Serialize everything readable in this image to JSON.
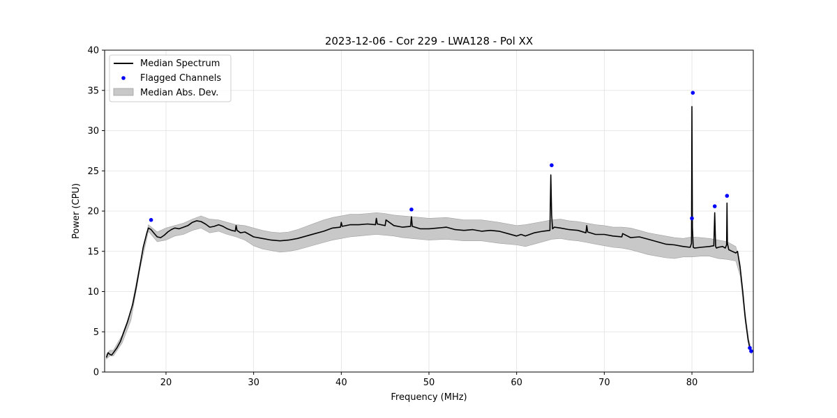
{
  "chart_data": {
    "type": "line",
    "title": "2023-12-06 - Cor 229 - LWA128 - Pol XX",
    "xlabel": "Frequency (MHz)",
    "ylabel": "Power (CPU)",
    "xlim": [
      13,
      87
    ],
    "ylim": [
      0,
      40
    ],
    "xticks": [
      20,
      30,
      40,
      50,
      60,
      70,
      80
    ],
    "yticks": [
      0,
      5,
      10,
      15,
      20,
      25,
      30,
      35,
      40
    ],
    "grid": true,
    "legend_position": "top-left",
    "legend": [
      "Median Spectrum",
      "Flagged Channels",
      "Median Abs. Dev."
    ],
    "colors": {
      "median": "#000000",
      "flagged": "#0000ff",
      "mad": "#c8c8c8",
      "mad_edge": "#a0a0a0",
      "grid": "#e0e0e0"
    },
    "series": [
      {
        "name": "Median Spectrum",
        "x": [
          13.2,
          13.4,
          13.6,
          13.8,
          14.0,
          14.4,
          14.8,
          15.2,
          15.6,
          15.9,
          16.2,
          16.6,
          17.0,
          17.4,
          17.8,
          18.0,
          18.3,
          18.6,
          19.0,
          19.4,
          19.8,
          20.2,
          20.6,
          21.0,
          21.5,
          22.0,
          22.5,
          23.0,
          23.5,
          24.0,
          24.5,
          25.0,
          25.5,
          26.0,
          26.5,
          27.0,
          27.5,
          27.9,
          28.0,
          28.1,
          28.5,
          29.0,
          29.5,
          30.0,
          31.0,
          32.0,
          33.0,
          34.0,
          35.0,
          36.0,
          37.0,
          38.0,
          39.0,
          39.9,
          40.0,
          40.1,
          41.0,
          42.0,
          43.0,
          43.9,
          44.0,
          44.1,
          45.0,
          45.1,
          46.0,
          47.0,
          47.9,
          48.0,
          48.1,
          49.0,
          50.0,
          51.0,
          52.0,
          53.0,
          54.0,
          55.0,
          56.0,
          57.0,
          58.0,
          59.0,
          60.0,
          60.5,
          61.0,
          62.0,
          63.0,
          63.8,
          63.9,
          64.0,
          64.1,
          64.3,
          65.0,
          66.0,
          67.0,
          67.9,
          68.0,
          68.1,
          69.0,
          70.0,
          71.0,
          72.0,
          72.1,
          73.0,
          74.0,
          75.0,
          76.0,
          77.0,
          78.0,
          79.0,
          79.8,
          79.95,
          80.0,
          80.05,
          80.15,
          80.3,
          81.0,
          82.0,
          82.5,
          82.6,
          82.7,
          82.8,
          83.0,
          83.5,
          83.8,
          83.95,
          84.0,
          84.05,
          84.2,
          84.6,
          85.0,
          85.2,
          85.5,
          85.8,
          86.1,
          86.4,
          86.6,
          86.8
        ],
        "y": [
          1.8,
          2.4,
          2.2,
          2.1,
          2.4,
          3.0,
          3.8,
          5.0,
          6.2,
          7.3,
          8.4,
          10.5,
          13.0,
          15.5,
          17.2,
          17.9,
          17.7,
          17.3,
          16.8,
          16.7,
          17.0,
          17.4,
          17.7,
          17.9,
          17.8,
          18.0,
          18.2,
          18.6,
          18.8,
          18.7,
          18.4,
          18.0,
          18.1,
          18.3,
          18.1,
          17.8,
          17.6,
          17.5,
          18.2,
          17.6,
          17.3,
          17.4,
          17.1,
          16.8,
          16.6,
          16.4,
          16.3,
          16.4,
          16.6,
          16.9,
          17.2,
          17.5,
          17.9,
          18.0,
          18.6,
          18.1,
          18.3,
          18.3,
          18.4,
          18.3,
          19.1,
          18.4,
          18.2,
          18.9,
          18.2,
          18.0,
          18.1,
          19.3,
          18.1,
          17.8,
          17.8,
          17.9,
          18.0,
          17.7,
          17.6,
          17.7,
          17.5,
          17.6,
          17.5,
          17.2,
          16.9,
          17.1,
          16.9,
          17.3,
          17.5,
          17.6,
          24.5,
          19.5,
          17.8,
          18.0,
          17.9,
          17.7,
          17.6,
          17.3,
          18.2,
          17.4,
          17.1,
          17.1,
          16.9,
          16.8,
          17.2,
          16.7,
          16.8,
          16.5,
          16.2,
          15.9,
          15.8,
          15.6,
          15.5,
          16.0,
          33.0,
          18.0,
          15.5,
          15.4,
          15.5,
          15.6,
          15.7,
          19.8,
          15.6,
          15.4,
          15.5,
          15.6,
          15.4,
          15.8,
          21.0,
          16.0,
          15.2,
          15.0,
          14.8,
          15.0,
          13.0,
          10.0,
          6.5,
          4.0,
          3.0,
          2.5
        ]
      },
      {
        "name": "Median Abs. Dev.",
        "x": [
          13.2,
          13.6,
          14.0,
          15.0,
          16.0,
          17.0,
          18.0,
          19.0,
          20.0,
          21.0,
          22.0,
          23.0,
          24.0,
          25.0,
          26.0,
          27.0,
          28.0,
          29.0,
          30.0,
          31.0,
          32.0,
          33.0,
          34.0,
          35.0,
          36.0,
          37.0,
          38.0,
          39.0,
          40.0,
          41.0,
          42.0,
          43.0,
          44.0,
          45.0,
          46.0,
          47.0,
          48.0,
          49.0,
          50.0,
          52.0,
          54.0,
          56.0,
          58.0,
          60.0,
          61.0,
          62.0,
          63.0,
          64.0,
          65.0,
          66.0,
          67.0,
          68.0,
          69.0,
          70.0,
          71.0,
          72.0,
          73.0,
          74.0,
          75.0,
          76.0,
          77.0,
          78.0,
          79.0,
          80.0,
          81.0,
          82.0,
          83.0,
          84.0,
          85.0,
          85.5,
          86.0,
          86.5,
          86.8
        ],
        "upper": [
          2.2,
          2.7,
          2.7,
          4.6,
          7.6,
          13.4,
          18.3,
          17.4,
          17.9,
          18.2,
          18.5,
          19.0,
          19.4,
          19.0,
          18.9,
          18.6,
          18.3,
          18.2,
          17.9,
          17.6,
          17.4,
          17.3,
          17.4,
          17.7,
          18.1,
          18.5,
          18.9,
          19.2,
          19.4,
          19.6,
          19.6,
          19.7,
          19.8,
          19.7,
          19.5,
          19.4,
          19.3,
          19.2,
          19.1,
          19.2,
          18.9,
          18.9,
          18.6,
          18.2,
          18.3,
          18.5,
          18.7,
          18.9,
          19.0,
          18.8,
          18.7,
          18.5,
          18.3,
          18.2,
          18.0,
          18.0,
          17.9,
          17.6,
          17.3,
          17.1,
          16.9,
          16.7,
          16.6,
          16.8,
          16.7,
          16.6,
          16.4,
          16.2,
          15.6,
          13.5,
          8.0,
          4.0,
          2.8
        ],
        "lower": [
          1.6,
          2.0,
          2.0,
          3.6,
          6.4,
          12.6,
          17.5,
          16.2,
          16.4,
          16.9,
          17.1,
          17.6,
          17.9,
          17.3,
          17.5,
          17.1,
          16.8,
          16.4,
          15.7,
          15.3,
          15.1,
          14.9,
          15.0,
          15.2,
          15.5,
          15.8,
          16.1,
          16.4,
          16.6,
          16.8,
          16.9,
          17.0,
          17.1,
          17.0,
          16.9,
          16.7,
          16.6,
          16.5,
          16.4,
          16.5,
          16.3,
          16.3,
          16.0,
          15.8,
          15.6,
          15.9,
          16.2,
          16.5,
          16.6,
          16.4,
          16.3,
          16.1,
          15.9,
          15.7,
          15.5,
          15.4,
          15.2,
          14.9,
          14.6,
          14.4,
          14.2,
          14.1,
          14.3,
          14.3,
          14.4,
          14.4,
          14.1,
          14.0,
          13.8,
          12.0,
          7.0,
          3.3,
          2.2
        ]
      },
      {
        "name": "Flagged Channels",
        "x": [
          18.3,
          48.0,
          64.0,
          80.0,
          80.1,
          82.6,
          84.0,
          86.6,
          86.75
        ],
        "y": [
          18.9,
          20.2,
          25.7,
          19.1,
          34.7,
          20.6,
          21.9,
          3.0,
          2.6
        ]
      }
    ]
  }
}
